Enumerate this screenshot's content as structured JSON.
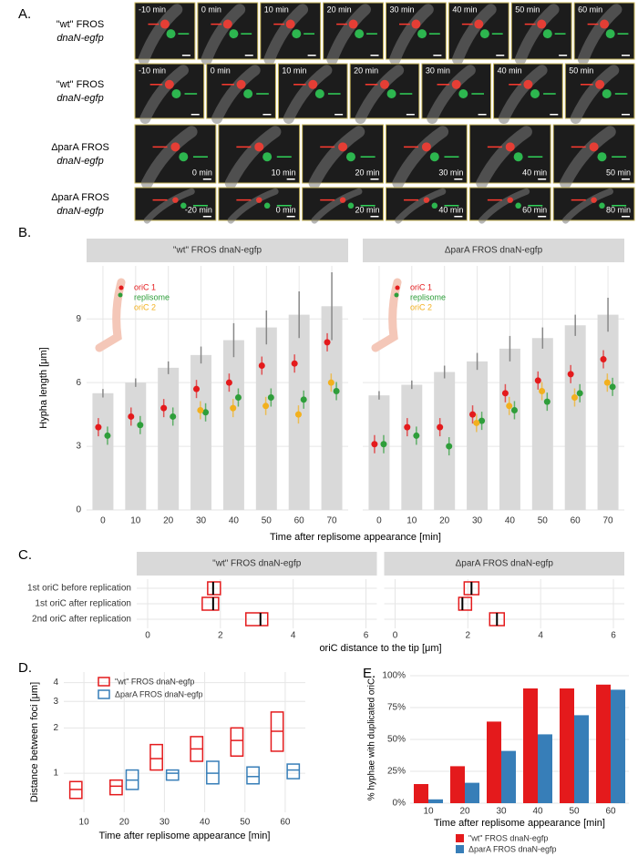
{
  "panel_a": {
    "label": "A.",
    "rows": [
      {
        "strain": "\"wt\" FROS",
        "gene": "dnaN-egfp",
        "times": [
          "-10 min",
          "0 min",
          "10 min",
          "20 min",
          "30 min",
          "40 min",
          "50 min",
          "60 min"
        ]
      },
      {
        "strain": "\"wt\" FROS",
        "gene": "dnaN-egfp",
        "times": [
          "-10 min",
          "0 min",
          "10 min",
          "20 min",
          "30 min",
          "40 min",
          "50 min"
        ]
      },
      {
        "strain": "ΔparA FROS",
        "gene": "dnaN-egfp",
        "times": [
          "0 min",
          "10 min",
          "20 min",
          "30 min",
          "40 min",
          "50 min"
        ]
      },
      {
        "strain": "ΔparA FROS",
        "gene": "dnaN-egfp",
        "times": [
          "-20 min",
          "0 min",
          "20 min",
          "40 min",
          "60 min",
          "80 min"
        ]
      }
    ]
  },
  "chart_data": [
    {
      "panel_label": "B.",
      "type": "bar",
      "x_label": "Time after replisome appearance [min]",
      "y_label": "Hypha length [μm]",
      "categories": [
        0,
        10,
        20,
        30,
        40,
        50,
        60,
        70
      ],
      "ylim": [
        0,
        11.5
      ],
      "yticks": [
        0,
        3,
        6,
        9
      ],
      "grid": true,
      "bar_color": "#d9d9d9",
      "facets": [
        {
          "title": "\"wt\" FROS dnaN-egfp",
          "values": [
            5.5,
            6.0,
            6.7,
            7.3,
            8.0,
            8.6,
            9.2,
            9.6
          ],
          "errors": [
            0.2,
            0.2,
            0.3,
            0.4,
            0.8,
            0.8,
            1.1,
            1.6
          ],
          "series": [
            {
              "name": "oriC 1",
              "color": "#e41a1c",
              "values": [
                3.9,
                4.4,
                4.8,
                5.7,
                6.0,
                6.8,
                6.9,
                7.9
              ]
            },
            {
              "name": "replisome",
              "color": "#2e9e3a",
              "values": [
                3.5,
                4.0,
                4.4,
                4.6,
                5.3,
                5.3,
                5.2,
                5.6
              ]
            },
            {
              "name": "oriC 2",
              "color": "#f2b01e",
              "values": [
                null,
                null,
                null,
                4.7,
                4.8,
                4.9,
                4.5,
                6.0
              ]
            }
          ]
        },
        {
          "title": "ΔparA FROS dnaN-egfp",
          "values": [
            5.4,
            5.9,
            6.5,
            7.0,
            7.6,
            8.1,
            8.7,
            9.2
          ],
          "errors": [
            0.2,
            0.2,
            0.3,
            0.4,
            0.6,
            0.5,
            0.5,
            0.8
          ],
          "series": [
            {
              "name": "oriC 1",
              "color": "#e41a1c",
              "values": [
                3.1,
                3.9,
                3.9,
                4.5,
                5.5,
                6.1,
                6.4,
                7.1
              ]
            },
            {
              "name": "replisome",
              "color": "#2e9e3a",
              "values": [
                3.1,
                3.5,
                3.0,
                4.2,
                4.7,
                5.1,
                5.5,
                5.8
              ]
            },
            {
              "name": "oriC 2",
              "color": "#f2b01e",
              "values": [
                null,
                null,
                null,
                4.1,
                4.9,
                5.6,
                5.3,
                6.0
              ]
            }
          ]
        }
      ]
    },
    {
      "panel_label": "C.",
      "type": "box",
      "x_label": "oriC distance to the tip [μm]",
      "categories": [
        "1st oriC before replication",
        "1st oriC after replication",
        "2nd oriC after replication"
      ],
      "xlim": [
        -0.3,
        6.3
      ],
      "xticks": [
        0,
        2,
        4,
        6
      ],
      "grid": true,
      "color": "#e41a1c",
      "facets": [
        {
          "title": "\"wt\" FROS dnaN-egfp",
          "q1": [
            1.65,
            1.5,
            2.7
          ],
          "median": [
            1.8,
            1.8,
            3.1
          ],
          "q3": [
            2.0,
            1.95,
            3.3
          ]
        },
        {
          "title": "ΔparA FROS dnaN-egfp",
          "q1": [
            1.9,
            1.75,
            2.6
          ],
          "median": [
            2.1,
            1.85,
            2.8
          ],
          "q3": [
            2.3,
            2.1,
            3.0
          ]
        }
      ]
    },
    {
      "panel_label": "D.",
      "type": "box",
      "x_label": "Time after replisome appearance [min]",
      "y_label": "Distance between foci [μm]",
      "categories": [
        10,
        20,
        30,
        40,
        50,
        60
      ],
      "log_scale": true,
      "ylim": [
        0.55,
        4.7
      ],
      "yticks": [
        1,
        2,
        3,
        4
      ],
      "grid": true,
      "series": [
        {
          "name": "\"wt\" FROS dnaN-egfp",
          "color": "#e41a1c",
          "q1": [
            0.68,
            0.72,
            1.05,
            1.2,
            1.3,
            1.4
          ],
          "median": [
            0.78,
            0.82,
            1.25,
            1.45,
            1.65,
            1.9
          ],
          "q3": [
            0.88,
            0.9,
            1.55,
            1.75,
            2.0,
            2.55
          ]
        },
        {
          "name": "ΔparA FROS dnaN-egfp",
          "color": "#377eb8",
          "q1": [
            null,
            0.78,
            0.9,
            0.85,
            0.85,
            0.92
          ],
          "median": [
            null,
            0.9,
            1.0,
            1.0,
            0.95,
            1.05
          ],
          "q3": [
            null,
            1.05,
            1.05,
            1.2,
            1.1,
            1.15
          ]
        }
      ]
    },
    {
      "panel_label": "E.",
      "type": "bar",
      "x_label": "Time after replisome appearance [min]",
      "y_label": "% hyphae with duplicated oriC",
      "categories": [
        10,
        20,
        30,
        40,
        50,
        60
      ],
      "ylim": [
        0,
        100
      ],
      "grid": true,
      "yticks": [
        {
          "value": 0,
          "label": "0%"
        },
        {
          "value": 25,
          "label": "25%"
        },
        {
          "value": 50,
          "label": "50%"
        },
        {
          "value": 75,
          "label": "75%"
        },
        {
          "value": 100,
          "label": "100%"
        }
      ],
      "series": [
        {
          "name": "\"wt\" FROS dnaN-egfp",
          "color": "#e41a1c",
          "values": [
            15,
            29,
            64,
            90,
            90,
            93
          ]
        },
        {
          "name": "ΔparA FROS dnaN-egfp",
          "color": "#377eb8",
          "values": [
            3,
            16,
            41,
            54,
            69,
            89
          ]
        }
      ]
    }
  ]
}
